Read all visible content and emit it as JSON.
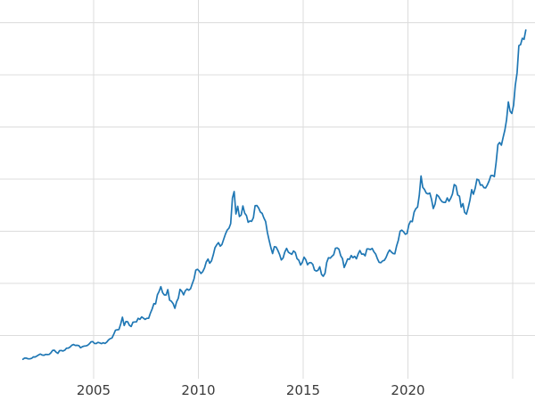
{
  "chart_data": {
    "type": "line",
    "title": "",
    "xlabel": "",
    "ylabel": "",
    "grid": true,
    "legend": "none",
    "x_range": [
      2000.5,
      2026.1
    ],
    "y_range": [
      0,
      3720
    ],
    "x_ticks": [
      {
        "value": 2005,
        "label": "2005"
      },
      {
        "value": 2010,
        "label": "2010"
      },
      {
        "value": 2015,
        "label": "2015"
      },
      {
        "value": 2020,
        "label": "2020"
      }
    ],
    "x_gridlines": [
      2005,
      2010,
      2015,
      2020,
      2025
    ],
    "y_gridlines": [
      500,
      1000,
      1500,
      2000,
      2500,
      3000,
      3500
    ],
    "colors": {
      "line": "#1f77b4",
      "grid": "#dcdcdc",
      "tick_text": "#3a3a3a",
      "background": "#ffffff"
    },
    "series": [
      {
        "name": "value",
        "x_start": 2001.625,
        "x_step": 0.083333,
        "values": [
          272,
          284,
          283,
          276,
          276,
          281,
          295,
          294,
          303,
          314,
          322,
          313,
          310,
          319,
          317,
          319,
          333,
          357,
          359,
          340,
          328,
          355,
          356,
          351,
          360,
          379,
          379,
          390,
          407,
          414,
          405,
          406,
          403,
          383,
          392,
          398,
          400,
          405,
          420,
          439,
          442,
          424,
          423,
          434,
          429,
          422,
          431,
          424,
          437,
          456,
          470,
          476,
          510,
          550,
          555,
          557,
          611,
          675,
          596,
          634,
          632,
          598,
          586,
          627,
          630,
          631,
          665,
          655,
          679,
          667,
          655,
          665,
          665,
          713,
          754,
          806,
          803,
          890,
          922,
          968,
          910,
          889,
          889,
          940,
          839,
          829,
          807,
          761,
          822,
          858,
          943,
          924,
          890,
          929,
          946,
          934,
          949,
          996,
          1043,
          1127,
          1135,
          1118,
          1095,
          1113,
          1149,
          1205,
          1233,
          1193,
          1216,
          1271,
          1342,
          1370,
          1391,
          1356,
          1373,
          1424,
          1474,
          1511,
          1529,
          1573,
          1820,
          1880,
          1666,
          1739,
          1641,
          1656,
          1743,
          1674,
          1650,
          1586,
          1599,
          1595,
          1630,
          1745,
          1747,
          1722,
          1685,
          1672,
          1628,
          1593,
          1487,
          1414,
          1343,
          1286,
          1351,
          1349,
          1316,
          1276,
          1225,
          1244,
          1300,
          1336,
          1299,
          1288,
          1279,
          1311,
          1296,
          1238,
          1222,
          1176,
          1201,
          1251,
          1227,
          1179,
          1198,
          1199,
          1182,
          1128,
          1118,
          1125,
          1159,
          1086,
          1068,
          1097,
          1200,
          1246,
          1242,
          1260,
          1276,
          1337,
          1340,
          1327,
          1266,
          1238,
          1152,
          1192,
          1234,
          1231,
          1267,
          1246,
          1260,
          1236,
          1283,
          1315,
          1280,
          1282,
          1264,
          1331,
          1330,
          1325,
          1335,
          1303,
          1281,
          1238,
          1202,
          1198,
          1215,
          1221,
          1250,
          1292,
          1320,
          1301,
          1286,
          1284,
          1359,
          1413,
          1500,
          1511,
          1495,
          1471,
          1479,
          1561,
          1597,
          1592,
          1683,
          1716,
          1732,
          1843,
          2030,
          1922,
          1900,
          1866,
          1858,
          1867,
          1808,
          1718,
          1760,
          1850,
          1835,
          1807,
          1784,
          1777,
          1777,
          1820,
          1787,
          1817,
          1856,
          1948,
          1934,
          1848,
          1836,
          1731,
          1765,
          1681,
          1664,
          1725,
          1797,
          1898,
          1855,
          1912,
          1999,
          1992,
          1942,
          1945,
          1918,
          1915,
          1945,
          1984,
          2034,
          2034,
          2024,
          2160,
          2330,
          2351,
          2326,
          2398,
          2470,
          2568,
          2740,
          2650,
          2630,
          2710,
          2900,
          3020,
          3280,
          3290,
          3350,
          3340,
          3430
        ]
      }
    ]
  }
}
